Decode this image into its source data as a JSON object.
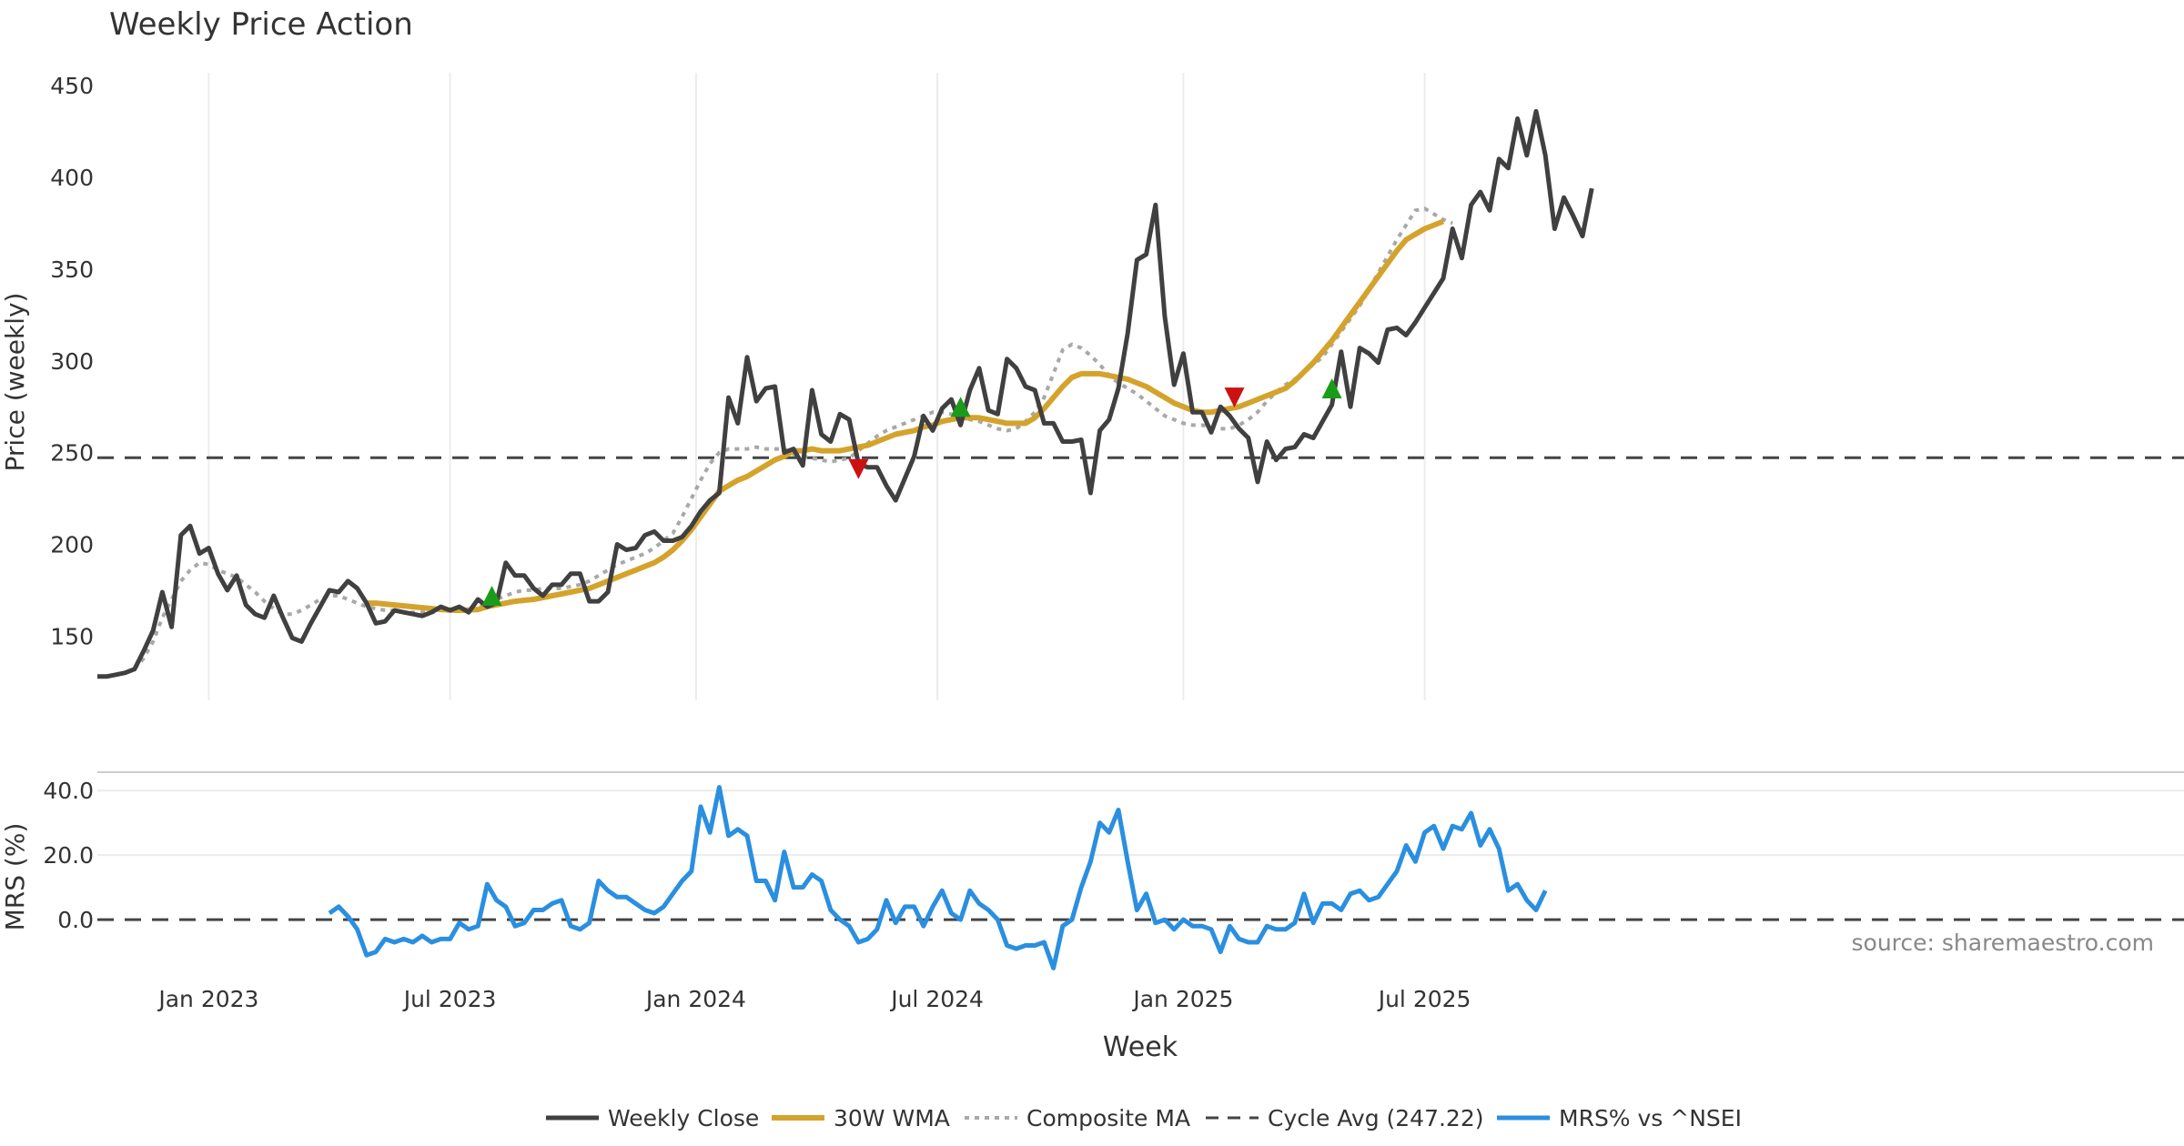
{
  "chart_data": {
    "title": "Weekly Price Action",
    "xlabel": "Week",
    "source_note": "source: sharemaestro.com",
    "x_ticks": [
      {
        "label": "Jan 2023",
        "week": 12
      },
      {
        "label": "Jul 2023",
        "week": 38
      },
      {
        "label": "Jan 2024",
        "week": 64.5
      },
      {
        "label": "Jul 2024",
        "week": 90.5
      },
      {
        "label": "Jan 2025",
        "week": 117
      },
      {
        "label": "Jul 2025",
        "week": 143
      }
    ],
    "price_panel": {
      "type": "line",
      "ylabel": "Price (weekly)",
      "ylim": [
        115,
        457
      ],
      "yticks": [
        "150",
        "200",
        "250",
        "300",
        "350",
        "400",
        "450"
      ],
      "cycle_avg": 247.22,
      "series": [
        {
          "name": "Weekly Close",
          "color": "#404040",
          "start_week": 0,
          "values": [
            128,
            128,
            129,
            130,
            132,
            142,
            153,
            174,
            155,
            205,
            210,
            195,
            198,
            184,
            175,
            183,
            167,
            162,
            160,
            172,
            160,
            149,
            147,
            157,
            166,
            175,
            174,
            180,
            176,
            168,
            157,
            158,
            164,
            163,
            162,
            161,
            163,
            166,
            164,
            166,
            163,
            170,
            166,
            168,
            190,
            183,
            183,
            176,
            172,
            178,
            178,
            184,
            184,
            169,
            169,
            174,
            200,
            197,
            198,
            205,
            207,
            202,
            202,
            204,
            210,
            218,
            224,
            228,
            280,
            266,
            302,
            278,
            285,
            286,
            250,
            252,
            243,
            284,
            260,
            256,
            271,
            268,
            244,
            242,
            242,
            232,
            224,
            236,
            248,
            270,
            262,
            274,
            279,
            265,
            284,
            296,
            273,
            271,
            301,
            296,
            286,
            284,
            266,
            266,
            256,
            256,
            257,
            228,
            262,
            268,
            285,
            315,
            355,
            358,
            385,
            324,
            287,
            304,
            272,
            272,
            261,
            275,
            270,
            263,
            258,
            234,
            256,
            246,
            252,
            253,
            260,
            258,
            267,
            276,
            305,
            275,
            307,
            304,
            299,
            317,
            318,
            314,
            321,
            329,
            337,
            345,
            372,
            356,
            385,
            392,
            382,
            410,
            405,
            432,
            412,
            436,
            412,
            372,
            389,
            379,
            368,
            394
          ]
        },
        {
          "name": "30W WMA",
          "color": "#d4a32c",
          "start_week": 29,
          "values": [
            168,
            168,
            167.5,
            167,
            166.5,
            166,
            165.5,
            165,
            164.5,
            164.2,
            164,
            164.2,
            164.5,
            166,
            167,
            168,
            169,
            169.5,
            170,
            171,
            172,
            173,
            174,
            175,
            176,
            178,
            180,
            182,
            184,
            186,
            188,
            190,
            193,
            197,
            202,
            208,
            215,
            222,
            229,
            232,
            235,
            237,
            240,
            243,
            246,
            248,
            251,
            251,
            252,
            251,
            251,
            251,
            252,
            253,
            254,
            256,
            258,
            260,
            261,
            262,
            264,
            265,
            267,
            268,
            269,
            269,
            269,
            268,
            267,
            266,
            266,
            266,
            269,
            274,
            280,
            286,
            291,
            293,
            293,
            293,
            292,
            291,
            290,
            288,
            286,
            283,
            280,
            277,
            275,
            273,
            272,
            272,
            273,
            274,
            275,
            277,
            279,
            281,
            283,
            285,
            289,
            294,
            299,
            305,
            311,
            318,
            325,
            332,
            339,
            346,
            353,
            360,
            366,
            369,
            372,
            374,
            376
          ]
        },
        {
          "name": "Composite MA",
          "color": "#a8a8a8",
          "start_week": 4,
          "values": [
            132,
            138,
            147,
            160,
            170,
            180,
            186,
            190,
            189,
            186,
            184,
            182,
            178,
            174,
            169,
            165,
            162,
            162,
            164,
            167,
            170,
            172,
            172,
            170,
            168,
            166,
            165,
            164,
            164,
            163,
            163,
            163,
            163,
            164,
            164,
            165,
            165,
            166,
            167,
            170,
            172,
            174,
            175,
            175,
            176,
            176,
            176,
            177,
            178,
            180,
            183,
            186,
            189,
            191,
            193,
            195,
            198,
            202,
            206,
            215,
            225,
            235,
            244,
            250,
            252,
            252,
            252,
            253,
            252,
            252,
            252,
            249,
            248,
            247,
            246,
            245,
            246,
            247,
            251,
            255,
            259,
            262,
            264,
            266,
            268,
            270,
            272,
            272,
            271,
            270,
            268,
            267,
            265,
            263,
            262,
            263,
            267,
            272,
            280,
            293,
            306,
            309,
            307,
            303,
            298,
            292,
            288,
            285,
            282,
            278,
            274,
            270,
            268,
            266,
            265,
            265,
            264,
            263,
            263,
            265,
            268,
            272,
            278,
            283,
            287,
            290,
            294,
            298,
            302,
            309,
            316,
            323,
            330,
            339,
            348,
            357,
            366,
            374,
            382,
            383,
            380,
            377,
            375
          ]
        },
        {
          "name": "Cycle Avg (247.22)",
          "color": "#444444",
          "style": "dashed"
        }
      ],
      "signals": [
        {
          "type": "buy",
          "week": 42.5,
          "price": 172
        },
        {
          "type": "sell",
          "week": 82,
          "price": 241
        },
        {
          "type": "buy",
          "week": 93,
          "price": 275
        },
        {
          "type": "sell",
          "week": 122.5,
          "price": 280
        },
        {
          "type": "buy",
          "week": 133,
          "price": 285
        }
      ]
    },
    "mrs_panel": {
      "type": "line",
      "ylabel": "MRS (%)",
      "ylim": [
        -18,
        44
      ],
      "yticks": [
        "0.0",
        "20.0",
        "40.0"
      ],
      "series": [
        {
          "name": "MRS% vs ^NSEI",
          "color": "#2b8fe0",
          "start_week": 25,
          "values": [
            2,
            4,
            1,
            -3,
            -11,
            -10,
            -6,
            -7,
            -6,
            -7,
            -5,
            -7,
            -6,
            -6,
            -1,
            -3,
            -2,
            11,
            6,
            4,
            -2,
            -1,
            3,
            3,
            5,
            6,
            -2,
            -3,
            -1,
            12,
            9,
            7,
            7,
            5,
            3,
            2,
            4,
            8,
            12,
            15,
            35,
            27,
            41,
            26,
            28,
            26,
            12,
            12,
            6,
            21,
            10,
            10,
            14,
            12,
            3,
            0,
            -2,
            -7,
            -6,
            -3,
            6,
            -1,
            4,
            4,
            -2,
            4,
            9,
            2,
            0,
            9,
            5,
            3,
            0,
            -8,
            -9,
            -8,
            -8,
            -7,
            -15,
            -2,
            0,
            10,
            18,
            30,
            27,
            34,
            18,
            3,
            8,
            -1,
            0,
            -3,
            0,
            -2,
            -2,
            -3,
            -10,
            -2,
            -6,
            -7,
            -7,
            -2,
            -3,
            -3,
            -1,
            8,
            -1,
            5,
            5,
            3,
            8,
            9,
            6,
            7,
            11,
            15,
            23,
            18,
            27,
            29,
            22,
            29,
            28,
            33,
            23,
            28,
            22,
            9,
            11,
            6,
            3,
            9
          ]
        },
        {
          "name": "zero-line",
          "style": "dashed"
        }
      ]
    },
    "legend": {
      "placement": "bottom-center",
      "items": [
        "Weekly Close",
        "30W WMA",
        "Composite MA",
        "Cycle Avg (247.22)",
        "MRS% vs ^NSEI"
      ]
    }
  }
}
